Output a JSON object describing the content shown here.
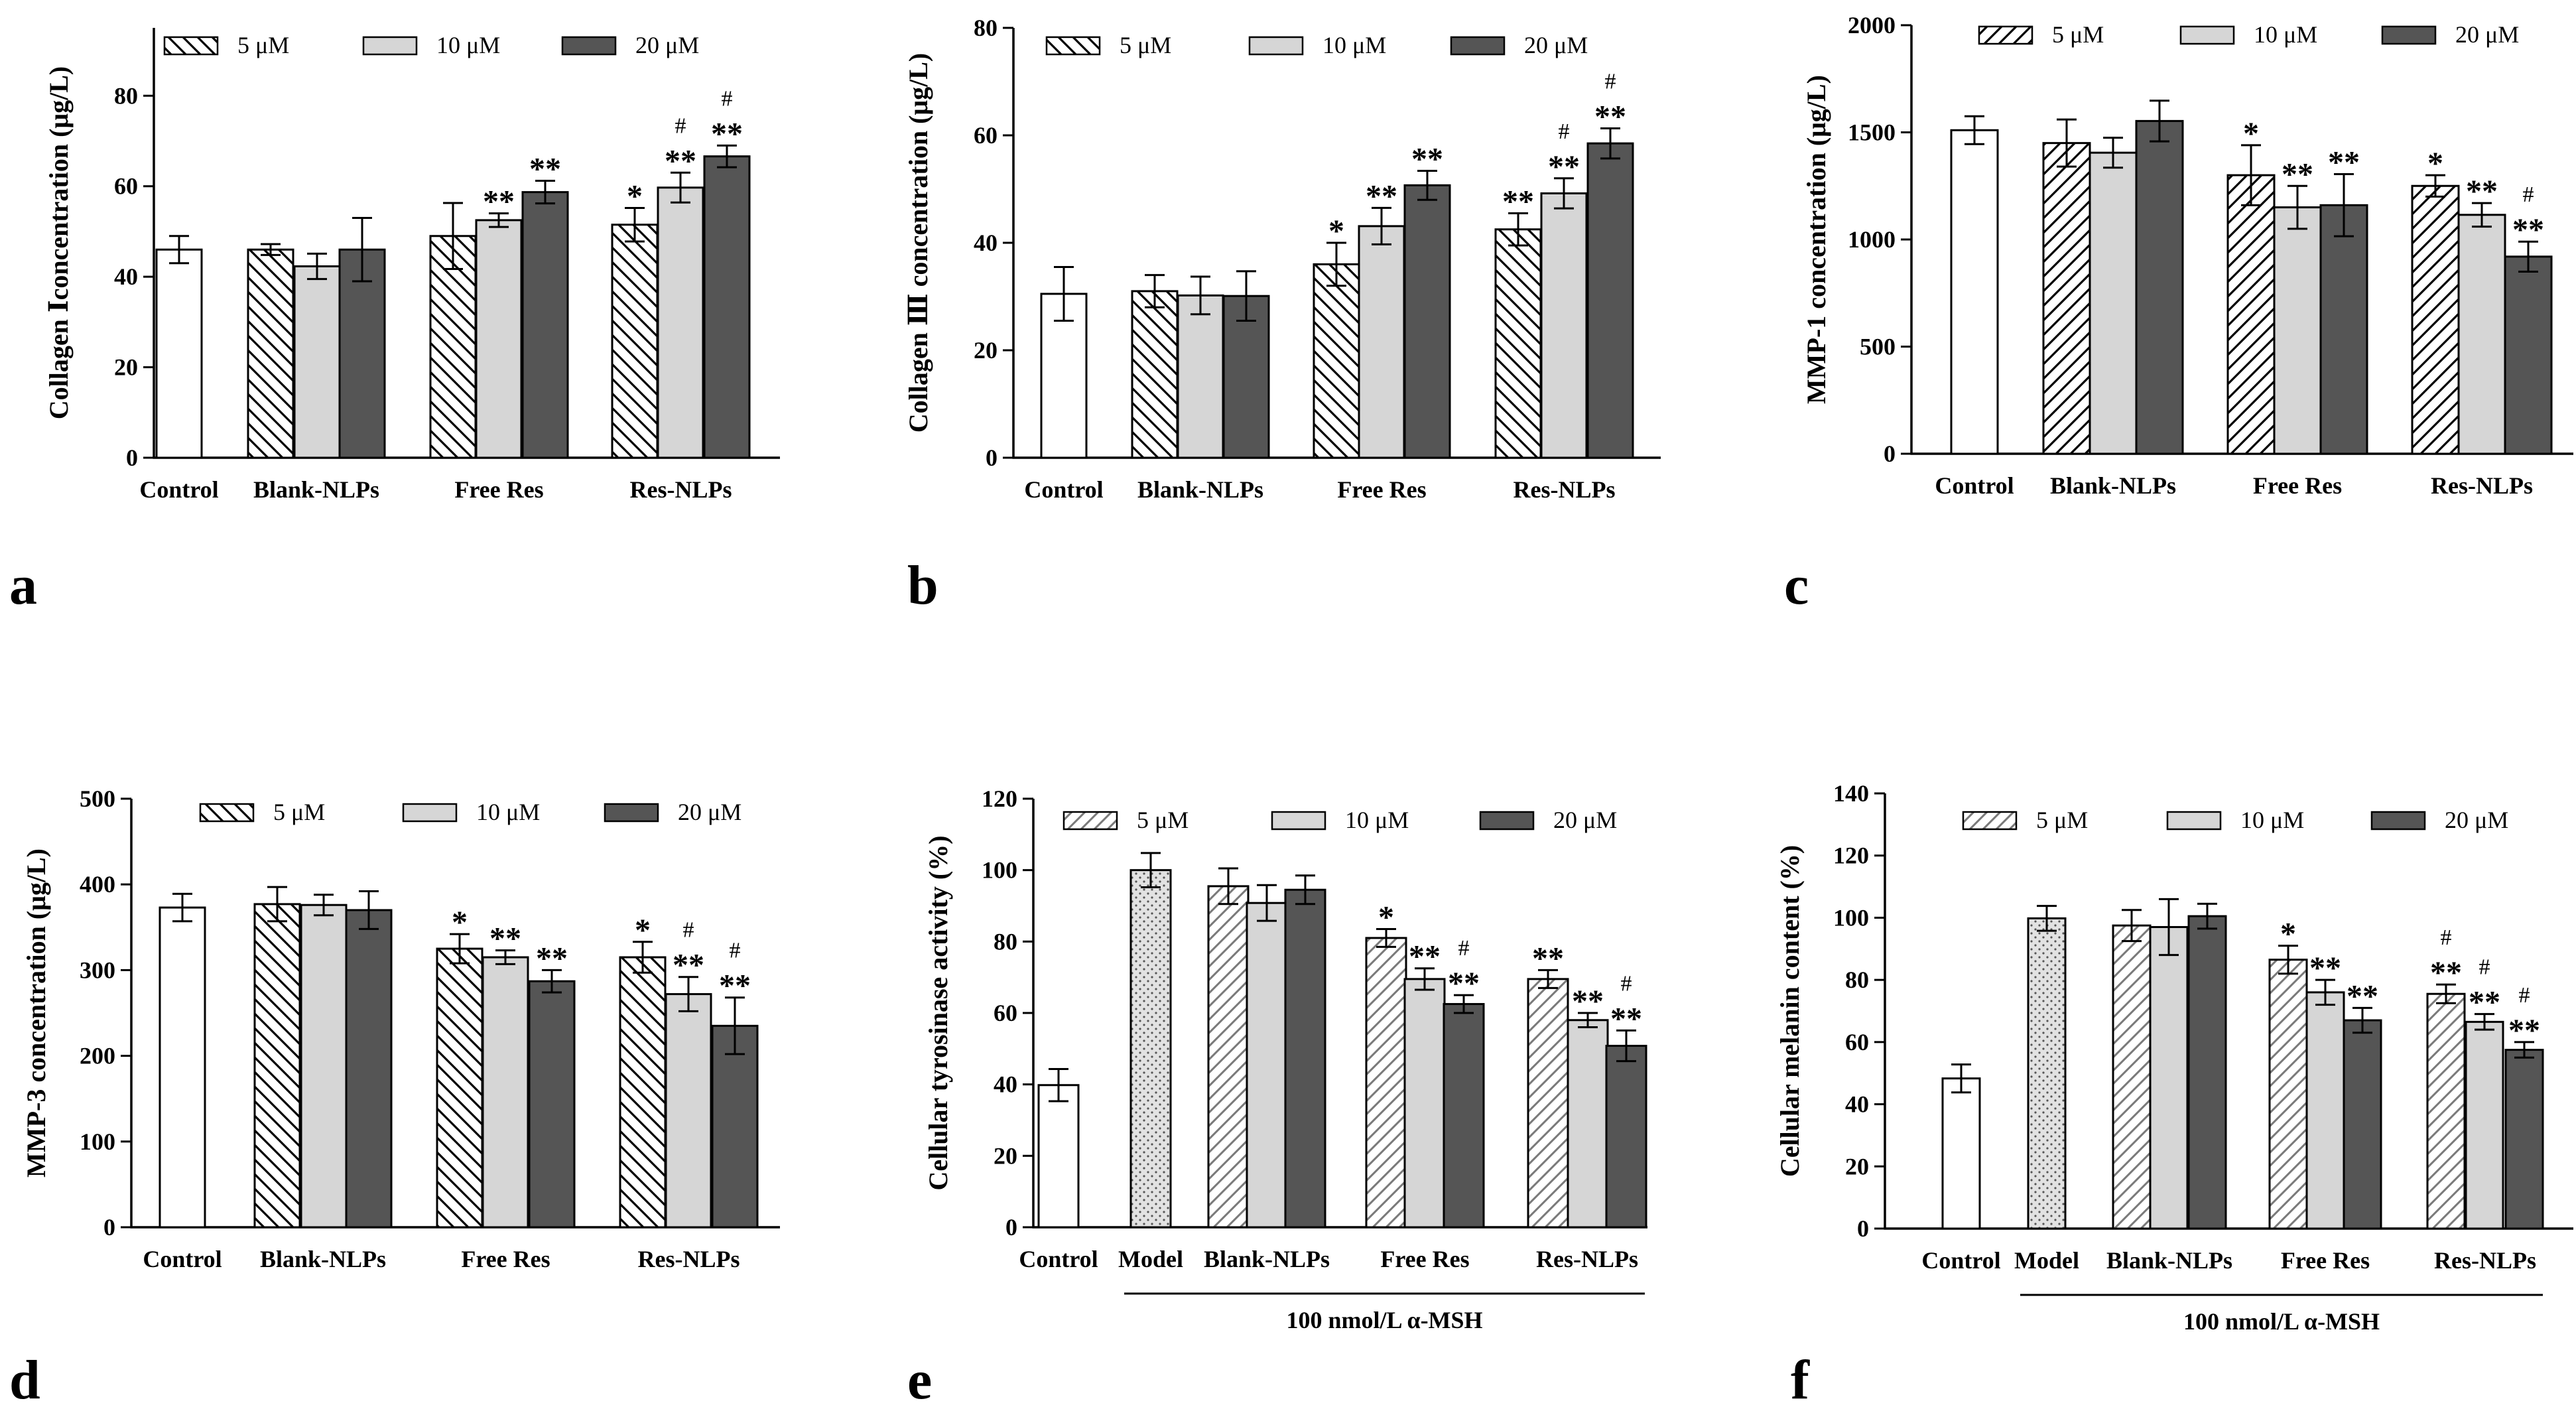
{
  "legend": {
    "labels": [
      "5 μM",
      "10 μM",
      "20 μM"
    ],
    "patterns": [
      "diag-back",
      "light-grey",
      "dark-grey"
    ]
  },
  "colors": {
    "light": "#d6d6d6",
    "dark": "#555555",
    "axis": "#000000",
    "control": "#ffffff"
  },
  "chart_data": [
    {
      "panel": "a",
      "type": "bar",
      "ylabel": "Collagen Ⅰconcentration (μg/L)",
      "ylim": [
        0,
        95
      ],
      "yticks": [
        0,
        20,
        40,
        60,
        80
      ],
      "groups": [
        {
          "label": "Control",
          "bars": [
            {
              "value": 46,
              "err": 3,
              "pattern": "white",
              "sig": ""
            }
          ]
        },
        {
          "label": "Blank-NLPs",
          "bars": [
            {
              "value": 46,
              "err": 1.2,
              "pattern": "diag-back",
              "sig": ""
            },
            {
              "value": 42.3,
              "err": 2.8,
              "pattern": "light-grey",
              "sig": ""
            },
            {
              "value": 46,
              "err": 7,
              "pattern": "dark-grey",
              "sig": ""
            }
          ]
        },
        {
          "label": "Free Res",
          "bars": [
            {
              "value": 49,
              "err": 7.3,
              "pattern": "diag-back",
              "sig": ""
            },
            {
              "value": 52.5,
              "err": 1.5,
              "pattern": "light-grey",
              "sig": "**"
            },
            {
              "value": 58.7,
              "err": 2.5,
              "pattern": "dark-grey",
              "sig": "**"
            }
          ]
        },
        {
          "label": "Res-NLPs",
          "bars": [
            {
              "value": 51.5,
              "err": 3.7,
              "pattern": "diag-back",
              "sig": "*"
            },
            {
              "value": 59.7,
              "err": 3.3,
              "pattern": "light-grey",
              "sig": "#\n**"
            },
            {
              "value": 66.6,
              "err": 2.4,
              "pattern": "dark-grey",
              "sig": "#\n**"
            }
          ]
        }
      ]
    },
    {
      "panel": "b",
      "type": "bar",
      "ylabel": "Collagen Ⅲ concentration (μg/L)",
      "ylim": [
        0,
        80
      ],
      "yticks": [
        0,
        20,
        40,
        60,
        80
      ],
      "groups": [
        {
          "label": "Control",
          "bars": [
            {
              "value": 30.5,
              "err": 5,
              "pattern": "white",
              "sig": ""
            }
          ]
        },
        {
          "label": "Blank-NLPs",
          "bars": [
            {
              "value": 31,
              "err": 3,
              "pattern": "diag-back",
              "sig": ""
            },
            {
              "value": 30.2,
              "err": 3.5,
              "pattern": "light-grey",
              "sig": ""
            },
            {
              "value": 30.1,
              "err": 4.6,
              "pattern": "dark-grey",
              "sig": ""
            }
          ]
        },
        {
          "label": "Free Res",
          "bars": [
            {
              "value": 36,
              "err": 4,
              "pattern": "diag-back",
              "sig": "*"
            },
            {
              "value": 43.1,
              "err": 3.4,
              "pattern": "light-grey",
              "sig": "**"
            },
            {
              "value": 50.7,
              "err": 2.7,
              "pattern": "dark-grey",
              "sig": "**"
            }
          ]
        },
        {
          "label": "Res-NLPs",
          "bars": [
            {
              "value": 42.5,
              "err": 3,
              "pattern": "diag-back",
              "sig": "**"
            },
            {
              "value": 49.2,
              "err": 2.8,
              "pattern": "light-grey",
              "sig": "#\n**"
            },
            {
              "value": 58.5,
              "err": 2.8,
              "pattern": "dark-grey",
              "sig": "#\n**"
            }
          ]
        }
      ]
    },
    {
      "panel": "c",
      "type": "bar",
      "ylabel": "MMP-1 concentration (μg/L)",
      "ylim": [
        0,
        2000
      ],
      "yticks": [
        0,
        500,
        1000,
        1500,
        2000
      ],
      "groups": [
        {
          "label": "Control",
          "bars": [
            {
              "value": 1510,
              "err": 65,
              "pattern": "white",
              "sig": ""
            }
          ]
        },
        {
          "label": "Blank-NLPs",
          "bars": [
            {
              "value": 1450,
              "err": 110,
              "pattern": "diag-fwd",
              "sig": ""
            },
            {
              "value": 1405,
              "err": 70,
              "pattern": "light-grey",
              "sig": ""
            },
            {
              "value": 1553,
              "err": 95,
              "pattern": "dark-grey",
              "sig": ""
            }
          ]
        },
        {
          "label": "Free Res",
          "bars": [
            {
              "value": 1300,
              "err": 140,
              "pattern": "diag-fwd",
              "sig": "*"
            },
            {
              "value": 1150,
              "err": 100,
              "pattern": "light-grey",
              "sig": "**"
            },
            {
              "value": 1160,
              "err": 145,
              "pattern": "dark-grey",
              "sig": "**"
            }
          ]
        },
        {
          "label": "Res-NLPs",
          "bars": [
            {
              "value": 1250,
              "err": 50,
              "pattern": "diag-fwd",
              "sig": "*"
            },
            {
              "value": 1115,
              "err": 55,
              "pattern": "light-grey",
              "sig": "**"
            },
            {
              "value": 920,
              "err": 70,
              "pattern": "dark-grey",
              "sig": "#\n**"
            }
          ]
        }
      ]
    },
    {
      "panel": "d",
      "type": "bar",
      "ylabel": "MMP-3 concentration (μg/L)",
      "ylim": [
        0,
        500
      ],
      "yticks": [
        0,
        100,
        200,
        300,
        400,
        500
      ],
      "groups": [
        {
          "label": "Control",
          "bars": [
            {
              "value": 373,
              "err": 16,
              "pattern": "white",
              "sig": ""
            }
          ]
        },
        {
          "label": "Blank-NLPs",
          "bars": [
            {
              "value": 377,
              "err": 20,
              "pattern": "diag-back",
              "sig": ""
            },
            {
              "value": 376,
              "err": 12,
              "pattern": "light-grey",
              "sig": ""
            },
            {
              "value": 370,
              "err": 22,
              "pattern": "dark-grey",
              "sig": ""
            }
          ]
        },
        {
          "label": "Free Res",
          "bars": [
            {
              "value": 325,
              "err": 17,
              "pattern": "diag-back",
              "sig": "*"
            },
            {
              "value": 315,
              "err": 8,
              "pattern": "light-grey",
              "sig": "**"
            },
            {
              "value": 287,
              "err": 13,
              "pattern": "dark-grey",
              "sig": "**"
            }
          ]
        },
        {
          "label": "Res-NLPs",
          "bars": [
            {
              "value": 315,
              "err": 18,
              "pattern": "diag-back",
              "sig": "*"
            },
            {
              "value": 272,
              "err": 20,
              "pattern": "light-grey",
              "sig": "#\n**"
            },
            {
              "value": 235,
              "err": 33,
              "pattern": "dark-grey",
              "sig": "#\n**"
            }
          ]
        }
      ]
    },
    {
      "panel": "e",
      "type": "bar",
      "ylabel": "Cellular tyrosinase activity (%)",
      "ylim": [
        0,
        120
      ],
      "yticks": [
        0,
        20,
        40,
        60,
        80,
        100,
        120
      ],
      "bracket_label": "100 nmol/L α-MSH",
      "groups": [
        {
          "label": "Control",
          "bars": [
            {
              "value": 39.8,
              "err": 4.5,
              "pattern": "white",
              "sig": ""
            }
          ]
        },
        {
          "label": "Model",
          "bars": [
            {
              "value": 100,
              "err": 4.8,
              "pattern": "dots",
              "sig": ""
            }
          ]
        },
        {
          "label": "Blank-NLPs",
          "bars": [
            {
              "value": 95.5,
              "err": 5,
              "pattern": "diag-light",
              "sig": ""
            },
            {
              "value": 90.8,
              "err": 5,
              "pattern": "light-grey",
              "sig": ""
            },
            {
              "value": 94.5,
              "err": 4,
              "pattern": "dark-grey",
              "sig": ""
            }
          ]
        },
        {
          "label": "Free Res",
          "bars": [
            {
              "value": 81,
              "err": 2.5,
              "pattern": "diag-light",
              "sig": "*"
            },
            {
              "value": 69.5,
              "err": 3,
              "pattern": "light-grey",
              "sig": "**"
            },
            {
              "value": 62.5,
              "err": 2.5,
              "pattern": "dark-grey",
              "sig": "#\n**"
            }
          ]
        },
        {
          "label": "Res-NLPs",
          "bars": [
            {
              "value": 69.5,
              "err": 2.5,
              "pattern": "diag-light",
              "sig": "**"
            },
            {
              "value": 58,
              "err": 2,
              "pattern": "light-grey",
              "sig": "**"
            },
            {
              "value": 50.8,
              "err": 4.3,
              "pattern": "dark-grey",
              "sig": "#\n**"
            }
          ]
        }
      ]
    },
    {
      "panel": "f",
      "type": "bar",
      "ylabel": "Cellular melanin content (%)",
      "ylim": [
        0,
        140
      ],
      "yticks": [
        0,
        20,
        40,
        60,
        80,
        100,
        120,
        140
      ],
      "bracket_label": "100 nmol/L α-MSH",
      "groups": [
        {
          "label": "Control",
          "bars": [
            {
              "value": 48.3,
              "err": 4.5,
              "pattern": "white",
              "sig": ""
            }
          ]
        },
        {
          "label": "Model",
          "bars": [
            {
              "value": 99.8,
              "err": 4,
              "pattern": "dots",
              "sig": ""
            }
          ]
        },
        {
          "label": "Blank-NLPs",
          "bars": [
            {
              "value": 97.5,
              "err": 5,
              "pattern": "diag-light",
              "sig": ""
            },
            {
              "value": 97,
              "err": 9,
              "pattern": "light-grey",
              "sig": ""
            },
            {
              "value": 100.5,
              "err": 4,
              "pattern": "dark-grey",
              "sig": ""
            }
          ]
        },
        {
          "label": "Free Res",
          "bars": [
            {
              "value": 86.5,
              "err": 4.5,
              "pattern": "diag-light",
              "sig": "*"
            },
            {
              "value": 76,
              "err": 4,
              "pattern": "light-grey",
              "sig": "**"
            },
            {
              "value": 67,
              "err": 4,
              "pattern": "dark-grey",
              "sig": "**"
            }
          ]
        },
        {
          "label": "Res-NLPs",
          "bars": [
            {
              "value": 75.5,
              "err": 3,
              "pattern": "diag-light",
              "sig": "#\n**"
            },
            {
              "value": 66.5,
              "err": 2.5,
              "pattern": "light-grey",
              "sig": "#\n**"
            },
            {
              "value": 57.5,
              "err": 2.5,
              "pattern": "dark-grey",
              "sig": "#\n**"
            }
          ]
        }
      ]
    }
  ]
}
